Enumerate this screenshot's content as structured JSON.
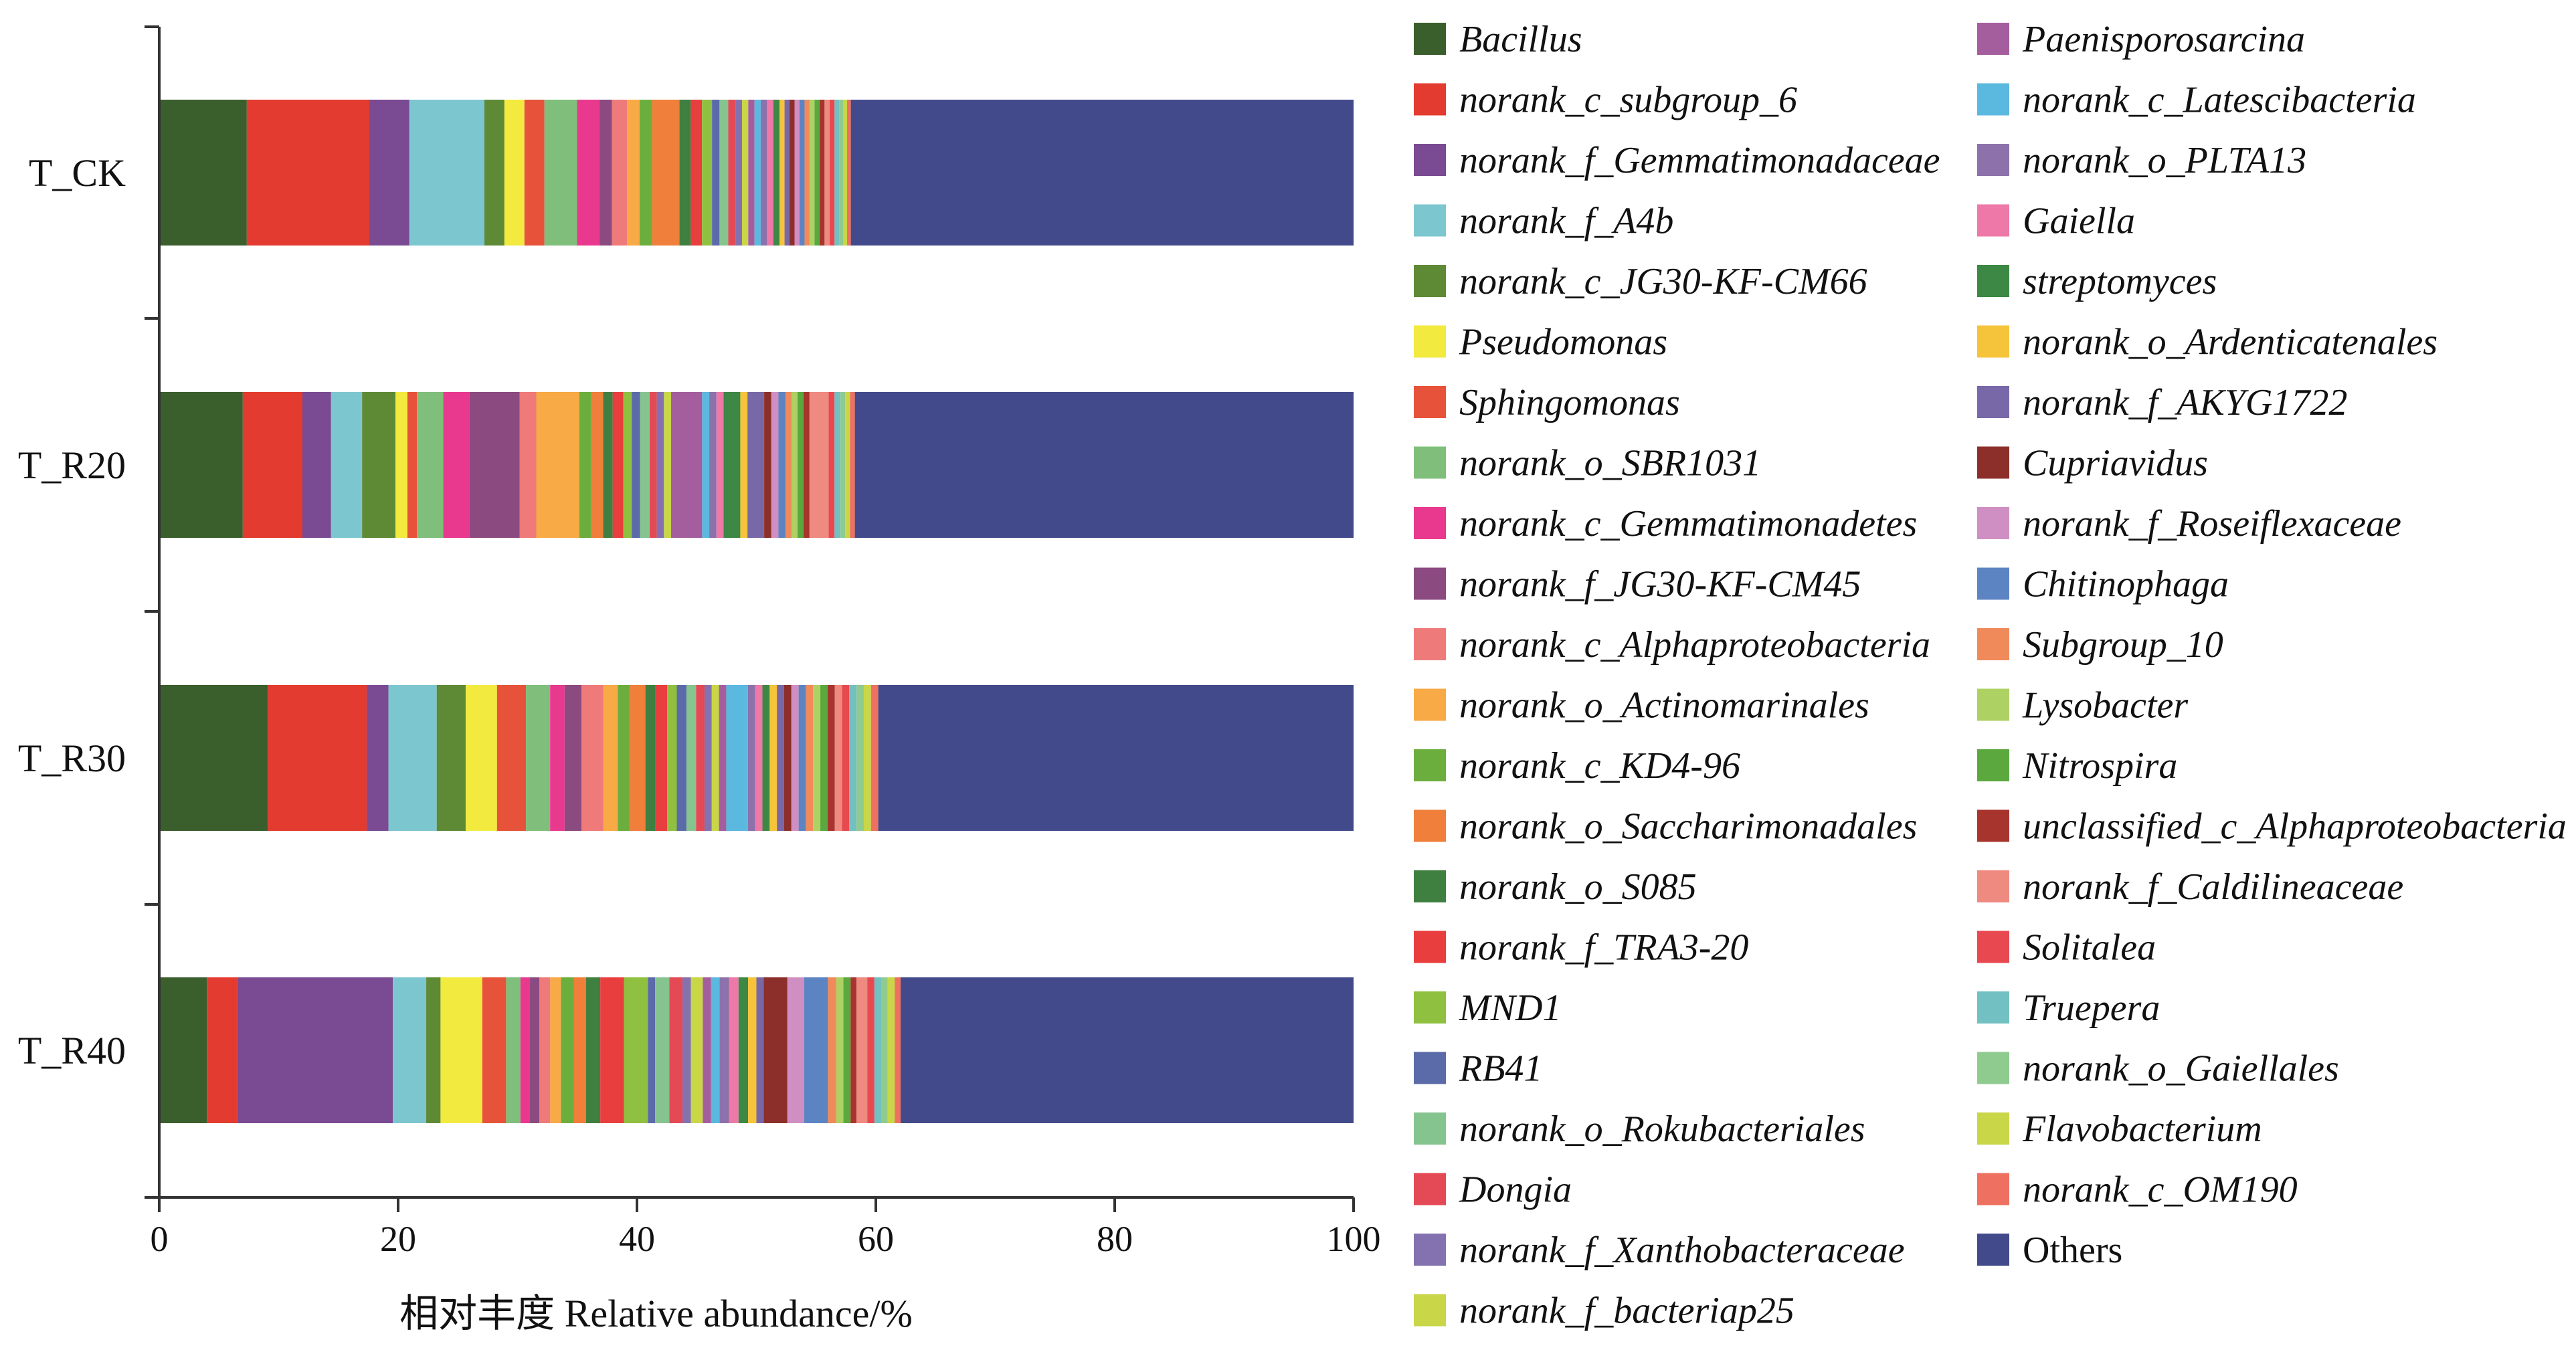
{
  "chart_data": {
    "type": "bar",
    "orientation": "horizontal",
    "stacked": true,
    "title": "",
    "xlabel": "相对丰度 Relative abundance/%",
    "ylabel": "",
    "xlim": [
      0,
      100
    ],
    "xticks": [
      0,
      20,
      40,
      60,
      80,
      100
    ],
    "grid": false,
    "legend_position": "right",
    "categories": [
      "T_CK",
      "T_R20",
      "T_R30",
      "T_R40"
    ],
    "series": [
      {
        "name": "Bacillus",
        "color": "#3a5e2c",
        "values": [
          7.0,
          7.0,
          9.0,
          4.0
        ]
      },
      {
        "name": "norank_c_subgroup_6",
        "color": "#e33b2f",
        "values": [
          9.8,
          5.0,
          8.2,
          2.6
        ]
      },
      {
        "name": "norank_f_Gemmatimonadaceae",
        "color": "#7a4a92",
        "values": [
          3.2,
          2.4,
          1.8,
          13.0
        ]
      },
      {
        "name": "norank_f_A4b",
        "color": "#7cc6cf",
        "values": [
          6.0,
          2.6,
          4.0,
          2.8
        ]
      },
      {
        "name": "norank_c_JG30-KF-CM66",
        "color": "#5e8a36",
        "values": [
          1.6,
          2.8,
          2.4,
          1.2
        ]
      },
      {
        "name": "Pseudomonas",
        "color": "#f2ea3e",
        "values": [
          1.6,
          1.0,
          2.6,
          3.5
        ]
      },
      {
        "name": "Sphingomonas",
        "color": "#e6533a",
        "values": [
          1.6,
          0.8,
          2.4,
          2.0
        ]
      },
      {
        "name": "norank_o_SBR1031",
        "color": "#7fbf7b",
        "values": [
          2.6,
          2.2,
          2.0,
          1.2
        ]
      },
      {
        "name": "norank_c_Gemmatimonadetes",
        "color": "#e8398f",
        "values": [
          1.8,
          2.2,
          1.2,
          0.8
        ]
      },
      {
        "name": "norank_f_JG30-KF-CM45",
        "color": "#8b4a80",
        "values": [
          1.0,
          4.2,
          1.4,
          0.8
        ]
      },
      {
        "name": "norank_c_Alphaproteobacteria",
        "color": "#ee7a7a",
        "values": [
          1.2,
          1.4,
          1.8,
          0.9
        ]
      },
      {
        "name": "norank_o_Actinomarinales",
        "color": "#f7aa45",
        "values": [
          1.0,
          3.6,
          1.2,
          0.9
        ]
      },
      {
        "name": "norank_c_KD4-96",
        "color": "#6cae3e",
        "values": [
          1.0,
          1.0,
          1.0,
          1.1
        ]
      },
      {
        "name": "norank_o_Saccharimonadales",
        "color": "#ef7f3a",
        "values": [
          2.2,
          1.0,
          1.3,
          1.0
        ]
      },
      {
        "name": "norank_o_S085",
        "color": "#3f7f40",
        "values": [
          0.9,
          0.8,
          0.8,
          1.2
        ]
      },
      {
        "name": "norank_f_TRA3-20",
        "color": "#e83e3e",
        "values": [
          0.9,
          0.9,
          1.0,
          2.0
        ]
      },
      {
        "name": "MND1",
        "color": "#8fc040",
        "values": [
          0.8,
          0.7,
          0.8,
          2.0
        ]
      },
      {
        "name": "RB41",
        "color": "#5b6aa8",
        "values": [
          0.6,
          0.7,
          0.8,
          0.6
        ]
      },
      {
        "name": "norank_o_Rokubacteriales",
        "color": "#86c48f",
        "values": [
          0.7,
          0.8,
          0.8,
          1.2
        ]
      },
      {
        "name": "Dongia",
        "color": "#e44a55",
        "values": [
          0.6,
          0.6,
          0.7,
          1.1
        ]
      },
      {
        "name": "norank_f_Xanthobacteraceae",
        "color": "#8472b0",
        "values": [
          0.5,
          0.6,
          0.6,
          0.7
        ]
      },
      {
        "name": "norank_f_bacteriap25",
        "color": "#c8d648",
        "values": [
          0.5,
          0.6,
          0.6,
          1.0
        ]
      },
      {
        "name": "Paenisporosarcina",
        "color": "#a45e9e",
        "values": [
          0.5,
          2.6,
          0.6,
          0.7
        ]
      },
      {
        "name": "norank_c_Latescibacteria",
        "color": "#5bb8df",
        "values": [
          0.5,
          0.6,
          1.8,
          0.7
        ]
      },
      {
        "name": "norank_o_PLTA13",
        "color": "#8c71aa",
        "values": [
          0.5,
          0.6,
          0.6,
          0.8
        ]
      },
      {
        "name": "Gaiella",
        "color": "#ee78a8",
        "values": [
          0.5,
          0.6,
          0.6,
          0.8
        ]
      },
      {
        "name": "streptomyces",
        "color": "#3c8844",
        "values": [
          0.5,
          1.4,
          0.6,
          0.8
        ]
      },
      {
        "name": "norank_o_Ardenticatenales",
        "color": "#f5c43a",
        "values": [
          0.4,
          0.6,
          0.6,
          0.7
        ]
      },
      {
        "name": "norank_f_AKYG1722",
        "color": "#7868a8",
        "values": [
          0.4,
          1.4,
          0.6,
          0.6
        ]
      },
      {
        "name": "Cupriavidus",
        "color": "#8c2f2a",
        "values": [
          0.4,
          0.6,
          0.6,
          2.0
        ]
      },
      {
        "name": "norank_f_Roseiflexaceae",
        "color": "#cf8fc2",
        "values": [
          0.4,
          0.6,
          0.6,
          1.4
        ]
      },
      {
        "name": "Chitinophaga",
        "color": "#5d84c2",
        "values": [
          0.4,
          0.6,
          0.6,
          2.0
        ]
      },
      {
        "name": "Subgroup_10",
        "color": "#f08a5a",
        "values": [
          0.4,
          0.5,
          0.6,
          0.7
        ]
      },
      {
        "name": "Lysobacter",
        "color": "#aed163",
        "values": [
          0.4,
          0.5,
          0.6,
          0.6
        ]
      },
      {
        "name": "Nitrospira",
        "color": "#5aa83e",
        "values": [
          0.4,
          0.5,
          0.6,
          0.6
        ]
      },
      {
        "name": "unclassified_c_Alphaproteobacteria",
        "color": "#a8342e",
        "values": [
          0.4,
          0.5,
          0.6,
          0.5
        ]
      },
      {
        "name": "norank_f_Caldilineaceae",
        "color": "#ee8a80",
        "values": [
          0.4,
          1.6,
          0.6,
          0.9
        ]
      },
      {
        "name": "Solitalea",
        "color": "#e84950",
        "values": [
          0.4,
          0.5,
          0.6,
          0.6
        ]
      },
      {
        "name": "Truepera",
        "color": "#72c0c2",
        "values": [
          0.4,
          0.5,
          0.6,
          0.6
        ]
      },
      {
        "name": "norank_o_Gaiellales",
        "color": "#8fca8f",
        "values": [
          0.3,
          0.4,
          0.6,
          0.5
        ]
      },
      {
        "name": "Flavobacterium",
        "color": "#c8d648",
        "values": [
          0.3,
          0.4,
          0.6,
          0.6
        ]
      },
      {
        "name": "norank_c_OM190",
        "color": "#ee7060",
        "values": [
          0.3,
          0.4,
          0.6,
          0.5
        ]
      },
      {
        "name": "Others",
        "color": "#434a8c",
        "values": [
          40.2,
          41.8,
          39.4,
          38.0
        ]
      }
    ]
  }
}
